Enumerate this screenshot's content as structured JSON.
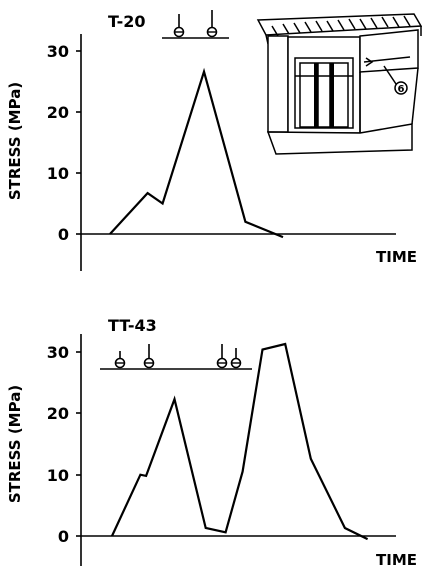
{
  "colors": {
    "ink": "#000000",
    "background": "#ffffff"
  },
  "chart_data": [
    {
      "type": "line",
      "label": "T-20",
      "xlabel": "TIME",
      "ylabel": "STRESS (MPa)",
      "ylim": [
        -5,
        30
      ],
      "yticks": [
        "0",
        "10",
        "20",
        "30"
      ],
      "grid": false,
      "legend": "none",
      "x": [
        0,
        1.0,
        1.4,
        2.5,
        3.6,
        4.6
      ],
      "y": [
        0,
        6.7,
        5.0,
        26.6,
        2.0,
        -0.5
      ],
      "load_markers": 2,
      "inset_icon": "building-facade-icon",
      "inset_label": "6"
    },
    {
      "type": "line",
      "label": "TT-43",
      "xlabel": "TIME",
      "ylabel": "STRESS (MPa)",
      "ylim": [
        -5,
        30
      ],
      "yticks": [
        "0",
        "10",
        "20",
        "30"
      ],
      "grid": false,
      "legend": "none",
      "x": [
        0,
        1.0,
        1.2,
        2.2,
        3.3,
        4.0,
        4.6,
        5.3,
        6.1,
        7.0,
        8.2,
        9.0
      ],
      "y": [
        0,
        10.0,
        9.8,
        22.3,
        1.3,
        0.6,
        10.5,
        30.4,
        31.3,
        12.6,
        1.3,
        -0.5
      ],
      "load_markers": 4
    }
  ]
}
